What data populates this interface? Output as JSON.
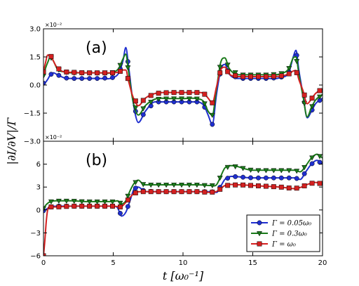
{
  "colors": {
    "blue": "#1f2fd0",
    "green": "#1a7a1a",
    "red": "#d42020"
  },
  "chart_data": {
    "type": "line",
    "xlabel": "t  [ω₀⁻¹]",
    "ylabel": "|∂I/∂V|/Γ",
    "xlim": [
      0,
      20
    ],
    "xticks": [
      "0",
      "5",
      "10",
      "15",
      "20"
    ],
    "legend": {
      "placement": "lower-right",
      "entries": [
        "Γ = 0.05ω₀",
        "Γ = 0.3ω₀",
        "Γ = ω₀"
      ]
    },
    "panels": [
      {
        "label": "(a)",
        "ylim": [
          -0.03,
          0.03
        ],
        "exponent": "×10⁻²",
        "yticks": [
          "3.0",
          "1.5",
          "0.0",
          "−1.5",
          "−3.0"
        ],
        "series": [
          {
            "name": "Γ = 0.05ω₀",
            "color": "blue",
            "x": [
              0,
              0.15,
              0.3,
              0.5,
              0.7,
              1,
              1.5,
              2,
              3,
              4,
              5,
              5.4,
              5.7,
              5.9,
              6.1,
              6.4,
              6.8,
              7.3,
              8,
              9,
              10,
              11,
              11.5,
              11.8,
              12.1,
              12.4,
              12.7,
              13,
              13.3,
              14,
              15,
              16,
              17,
              17.6,
              17.9,
              18.1,
              18.3,
              18.6,
              18.9,
              19.2,
              19.5,
              20
            ],
            "y": [
              0.001,
              0.0015,
              0.003,
              0.0055,
              0.0065,
              0.0055,
              0.0038,
              0.0035,
              0.0035,
              0.0035,
              0.004,
              0.0065,
              0.013,
              0.02,
              0.01,
              -0.008,
              -0.02,
              -0.014,
              -0.009,
              -0.009,
              -0.009,
              -0.009,
              -0.011,
              -0.016,
              -0.021,
              -0.005,
              0.008,
              0.011,
              0.006,
              0.0035,
              0.0035,
              0.0035,
              0.004,
              0.007,
              0.015,
              0.0185,
              0.008,
              -0.005,
              -0.0175,
              -0.014,
              -0.01,
              -0.007
            ]
          },
          {
            "name": "Γ = 0.3ω₀",
            "color": "green",
            "x": [
              0,
              0.15,
              0.3,
              0.5,
              0.7,
              1,
              1.5,
              2,
              3,
              4,
              5,
              5.4,
              5.7,
              5.9,
              6.1,
              6.4,
              6.8,
              7.3,
              8,
              9,
              10,
              11,
              11.5,
              11.8,
              12.1,
              12.4,
              12.7,
              13,
              13.3,
              14,
              15,
              16,
              17,
              17.6,
              17.9,
              18.1,
              18.3,
              18.6,
              18.9,
              19.2,
              19.5,
              20
            ],
            "y": [
              0.005,
              0.009,
              0.012,
              0.015,
              0.013,
              0.0085,
              0.007,
              0.0065,
              0.0065,
              0.0065,
              0.0068,
              0.009,
              0.014,
              0.0165,
              0.007,
              -0.008,
              -0.016,
              -0.011,
              -0.0075,
              -0.0072,
              -0.0072,
              -0.0073,
              -0.009,
              -0.014,
              -0.016,
              -0.002,
              0.012,
              0.0145,
              0.009,
              0.0055,
              0.0055,
              0.0055,
              0.006,
              0.009,
              0.0145,
              0.015,
              0.006,
              -0.006,
              -0.017,
              -0.012,
              -0.008,
              -0.005
            ]
          },
          {
            "name": "Γ = ω₀",
            "color": "red",
            "x": [
              0,
              0.15,
              0.3,
              0.5,
              0.7,
              1,
              1.5,
              2,
              3,
              4,
              5,
              5.4,
              5.7,
              5.9,
              6.1,
              6.4,
              6.8,
              7.3,
              8,
              9,
              10,
              11,
              11.5,
              11.8,
              12.1,
              12.4,
              12.7,
              13,
              13.3,
              14,
              15,
              16,
              17,
              17.6,
              17.9,
              18.1,
              18.3,
              18.6,
              18.9,
              19.2,
              19.5,
              20
            ],
            "y": [
              0.007,
              0.012,
              0.016,
              0.016,
              0.013,
              0.009,
              0.007,
              0.0068,
              0.0065,
              0.0065,
              0.0065,
              0.007,
              0.008,
              0.008,
              0.002,
              -0.006,
              -0.011,
              -0.007,
              -0.0045,
              -0.004,
              -0.004,
              -0.004,
              -0.0045,
              -0.007,
              -0.0095,
              -0.001,
              0.008,
              0.0095,
              0.006,
              0.0045,
              0.0045,
              0.0045,
              0.0048,
              0.006,
              0.0075,
              0.0078,
              0.003,
              -0.003,
              -0.01,
              -0.0075,
              -0.0045,
              -0.002
            ]
          }
        ]
      },
      {
        "label": "(b)",
        "ylim": [
          -0.06,
          0.09
        ],
        "exponent": "×10⁻²",
        "yticks": [
          "6",
          "3",
          "0",
          "−3",
          "−6"
        ],
        "series": [
          {
            "name": "Γ = 0.05ω₀",
            "color": "blue",
            "x": [
              0,
              0.2,
              0.5,
              1,
              2,
              3,
              4,
              5,
              5.3,
              5.6,
              5.9,
              6.2,
              6.5,
              6.8,
              7.2,
              8,
              9,
              10,
              11,
              12,
              12.4,
              12.7,
              13,
              13.5,
              15,
              17,
              18,
              18.4,
              18.8,
              19.2,
              19.6,
              20
            ],
            "y": [
              -0.001,
              0.001,
              0.004,
              0.005,
              0.005,
              0.005,
              0.005,
              0.005,
              0.003,
              -0.008,
              -0.003,
              0.012,
              0.028,
              0.03,
              0.025,
              0.024,
              0.024,
              0.024,
              0.024,
              0.024,
              0.023,
              0.031,
              0.04,
              0.044,
              0.042,
              0.042,
              0.042,
              0.04,
              0.05,
              0.06,
              0.065,
              0.06
            ]
          },
          {
            "name": "Γ = 0.3ω₀",
            "color": "green",
            "x": [
              0,
              0.2,
              0.5,
              1,
              2,
              3,
              4,
              5,
              5.3,
              5.6,
              5.9,
              6.2,
              6.5,
              6.8,
              7.2,
              8,
              9,
              10,
              11,
              12,
              12.4,
              12.7,
              13,
              13.5,
              15,
              17,
              18,
              18.4,
              18.8,
              19.2,
              19.6,
              20
            ],
            "y": [
              0.002,
              0.007,
              0.011,
              0.012,
              0.012,
              0.011,
              0.011,
              0.011,
              0.012,
              0.008,
              0.012,
              0.025,
              0.035,
              0.039,
              0.033,
              0.033,
              0.033,
              0.033,
              0.033,
              0.032,
              0.033,
              0.044,
              0.055,
              0.058,
              0.052,
              0.052,
              0.052,
              0.05,
              0.058,
              0.068,
              0.073,
              0.068
            ]
          },
          {
            "name": "Γ = ω₀",
            "color": "red",
            "x": [
              0,
              0.1,
              0.2,
              0.3,
              0.5,
              0.8,
              1,
              2,
              3,
              4,
              5,
              5.5,
              6,
              6.5,
              7,
              8,
              9,
              10,
              11,
              12,
              12.5,
              13,
              14,
              15,
              16,
              17,
              18,
              18.5,
              19,
              19.5,
              20
            ],
            "y": [
              -0.06,
              -0.04,
              -0.015,
              0.0,
              0.004,
              0.004,
              0.004,
              0.005,
              0.005,
              0.005,
              0.005,
              0.004,
              0.012,
              0.022,
              0.024,
              0.024,
              0.024,
              0.024,
              0.024,
              0.023,
              0.025,
              0.032,
              0.033,
              0.032,
              0.031,
              0.03,
              0.028,
              0.03,
              0.034,
              0.036,
              0.034
            ]
          }
        ]
      }
    ]
  }
}
